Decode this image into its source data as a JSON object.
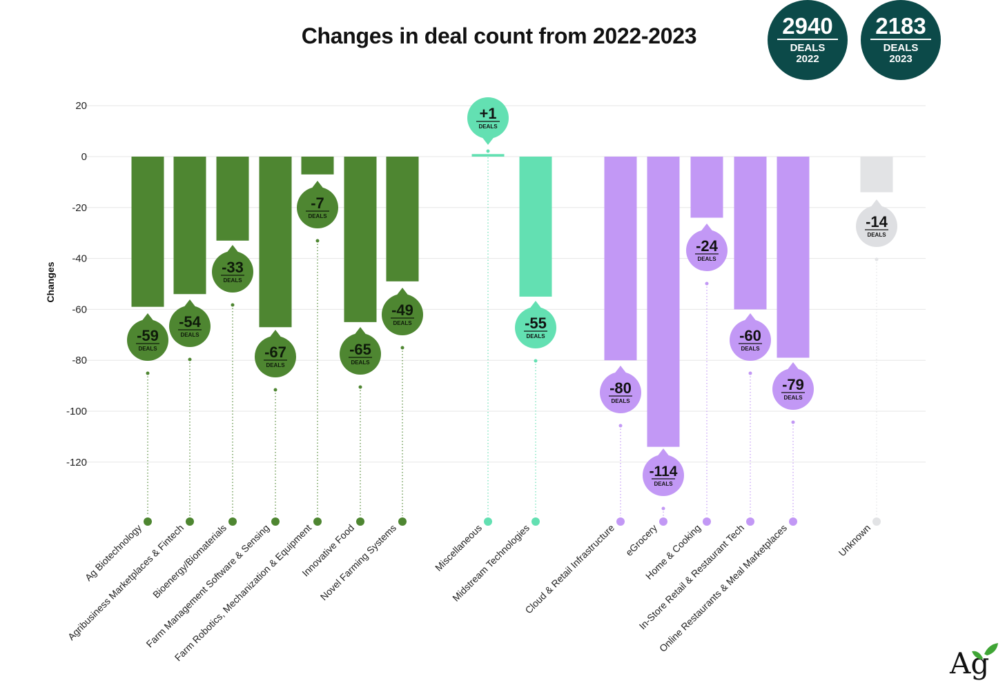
{
  "title": "Changes in deal count from 2022-2023",
  "summary": [
    {
      "value": "2940",
      "label": "DEALS",
      "year": "2022"
    },
    {
      "value": "2183",
      "label": "DEALS",
      "year": "2023"
    }
  ],
  "colors": {
    "upstream": "#4e8631",
    "midstream": "#63e0b2",
    "downstream": "#c298f5",
    "unknown": "#e2e3e5",
    "unknown_bubble": "#dedfe2",
    "badge": "#0c4a49",
    "grid": "#e6e6e6"
  },
  "logo_text": "Ag",
  "chart_data": {
    "type": "bar",
    "title": "Changes in deal count from 2022-2023",
    "xlabel": "",
    "ylabel": "Changes",
    "ylim": [
      -140,
      20
    ],
    "yticks": [
      20,
      0,
      -20,
      -40,
      -60,
      -80,
      -100,
      -120
    ],
    "grid": true,
    "bubble_unit": "DEALS",
    "categories": [
      {
        "name": "Ag Biotechnology",
        "value": -59,
        "label": "-59",
        "group": "upstream"
      },
      {
        "name": "Agribusiness Marketplaces & Fintech",
        "value": -54,
        "label": "-54",
        "group": "upstream"
      },
      {
        "name": "Bioenergy/Biomaterials",
        "value": -33,
        "label": "-33",
        "group": "upstream"
      },
      {
        "name": "Farm Management Software & Sensing",
        "value": -67,
        "label": "-67",
        "group": "upstream"
      },
      {
        "name": "Farm Robotics, Mechanization & Equipment",
        "value": -7,
        "label": "-7",
        "group": "upstream"
      },
      {
        "name": "Innovative Food",
        "value": -65,
        "label": "-65",
        "group": "upstream"
      },
      {
        "name": "Novel Farming Systems",
        "value": -49,
        "label": "-49",
        "group": "upstream"
      },
      {
        "name": "Miscellaneous",
        "value": 1,
        "label": "+1",
        "group": "midstream"
      },
      {
        "name": "Midstream Technologies",
        "value": -55,
        "label": "-55",
        "group": "midstream"
      },
      {
        "name": "Cloud & Retail Infrastructure",
        "value": -80,
        "label": "-80",
        "group": "downstream"
      },
      {
        "name": "eGrocery",
        "value": -114,
        "label": "-114",
        "group": "downstream"
      },
      {
        "name": "Home & Cooking",
        "value": -24,
        "label": "-24",
        "group": "downstream"
      },
      {
        "name": "In-Store Retail & Restaurant Tech",
        "value": -60,
        "label": "-60",
        "group": "downstream"
      },
      {
        "name": "Online Restaurants & Meal Marketplaces",
        "value": -79,
        "label": "-79",
        "group": "downstream"
      },
      {
        "name": "Unknown",
        "value": -14,
        "label": "-14",
        "group": "unknown"
      }
    ]
  }
}
